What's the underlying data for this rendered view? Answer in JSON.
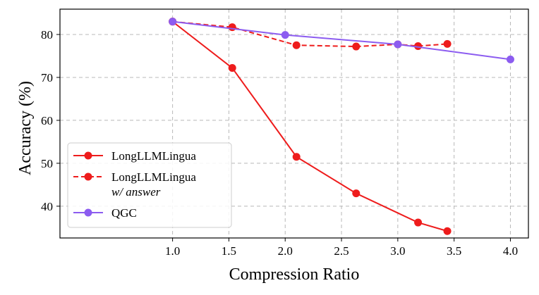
{
  "chart_data": {
    "type": "line",
    "xlabel": "Compression Ratio",
    "ylabel": "Accuracy (%)",
    "xlim": [
      0.0,
      4.16
    ],
    "ylim": [
      32.6,
      85.9
    ],
    "xticks": [
      1.0,
      1.5,
      2.0,
      2.5,
      3.0,
      3.5,
      4.0
    ],
    "xtick_labels": [
      "1.0",
      "1.5",
      "2.0",
      "2.5",
      "3.0",
      "3.5",
      "4.0"
    ],
    "yticks": [
      40,
      50,
      60,
      70,
      80
    ],
    "ytick_labels": [
      "40",
      "50",
      "60",
      "70",
      "80"
    ],
    "grid": true,
    "legend_position": "lower-left",
    "series": [
      {
        "name": "LongLLMLingua",
        "color": "#ee1c1c",
        "line_style": "solid",
        "x": [
          1.0,
          1.53,
          2.1,
          2.63,
          3.18,
          3.44
        ],
        "y": [
          83.0,
          72.2,
          51.5,
          43.0,
          36.2,
          34.2
        ]
      },
      {
        "name": "LongLLMLingua",
        "name_suffix": "w/ answer",
        "color": "#ee1c1c",
        "line_style": "dashed",
        "x": [
          1.0,
          1.53,
          2.1,
          2.63,
          3.0,
          3.18,
          3.44
        ],
        "y": [
          83.0,
          81.7,
          77.5,
          77.2,
          77.7,
          77.3,
          77.8
        ]
      },
      {
        "name": "QGC",
        "color": "#8c5cf0",
        "line_style": "solid",
        "x": [
          1.0,
          2.0,
          3.0,
          4.0
        ],
        "y": [
          83.0,
          79.9,
          77.7,
          74.2
        ]
      }
    ]
  }
}
